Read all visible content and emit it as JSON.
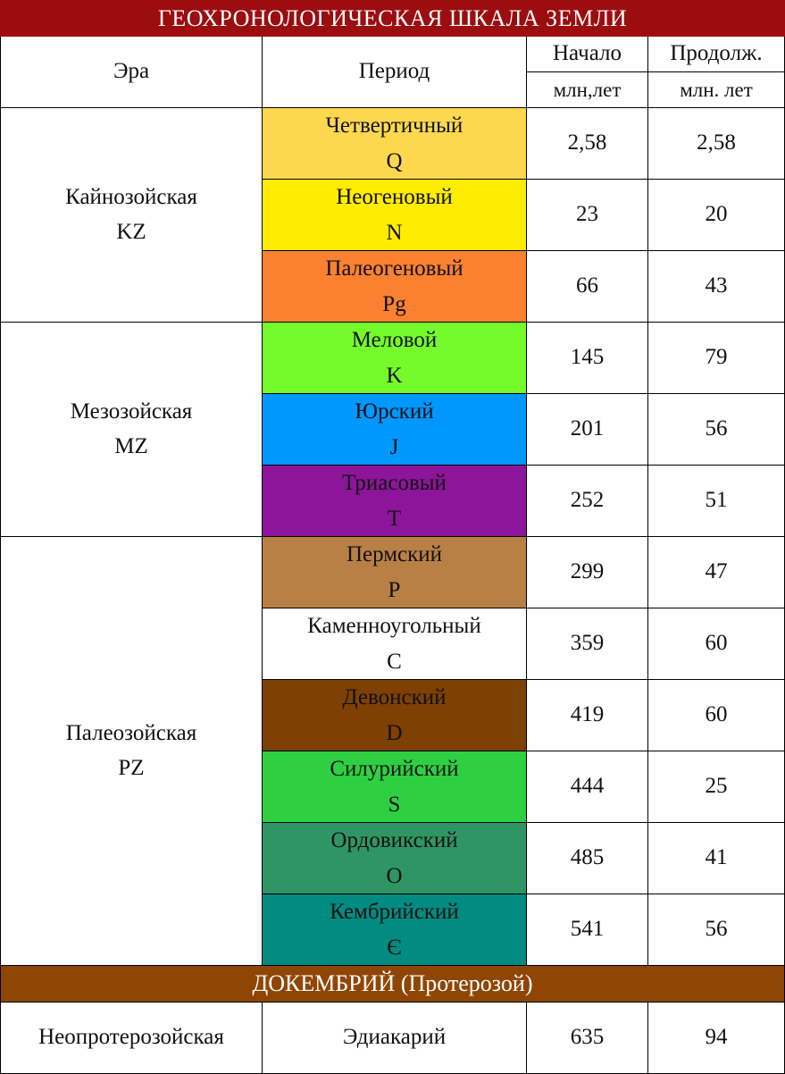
{
  "title": "ГЕОХРОНОЛОГИЧЕСКАЯ ШКАЛА ЗЕМЛИ",
  "header": {
    "era": "Эра",
    "period": "Период",
    "start": "Начало",
    "start_unit": "млн,лет",
    "duration": "Продолж.",
    "duration_unit": "млн. лет"
  },
  "eras": [
    {
      "name": "Кайнозойская",
      "code": "KZ"
    },
    {
      "name": "Мезозойская",
      "code": "MZ"
    },
    {
      "name": "Палеозойская",
      "code": "PZ"
    }
  ],
  "periods": [
    {
      "name": "Четвертичный",
      "code": "Q",
      "start": "2,58",
      "duration": "2,58",
      "color": "#fdd84f"
    },
    {
      "name": "Неогеновый",
      "code": "N",
      "start": "23",
      "duration": "20",
      "color": "#ffed00"
    },
    {
      "name": "Палеогеновый",
      "code": "Pg",
      "start": "66",
      "duration": "43",
      "color": "#fb8130"
    },
    {
      "name": "Меловой",
      "code": "K",
      "start": "145",
      "duration": "79",
      "color": "#75fb2c"
    },
    {
      "name": "Юрский",
      "code": "J",
      "start": "201",
      "duration": "56",
      "color": "#0097fe"
    },
    {
      "name": "Триасовый",
      "code": "T",
      "start": "252",
      "duration": "51",
      "color": "#8d1599"
    },
    {
      "name": "Пермский",
      "code": "P",
      "start": "299",
      "duration": "47",
      "color": "#b98045"
    },
    {
      "name": "Каменноугольный",
      "code": "C",
      "start": "359",
      "duration": "60",
      "color": "#ffffff"
    },
    {
      "name": "Девонский",
      "code": "D",
      "start": "419",
      "duration": "60",
      "color": "#7f4005"
    },
    {
      "name": "Силурийский",
      "code": "S",
      "start": "444",
      "duration": "25",
      "color": "#2ed041"
    },
    {
      "name": "Ордовикский",
      "code": "O",
      "start": "485",
      "duration": "41",
      "color": "#2f9565"
    },
    {
      "name": "Кембрийский",
      "code": "Є",
      "start": "541",
      "duration": "56",
      "color": "#038a81"
    }
  ],
  "precambrian": {
    "label": "ДОКЕМБРИЙ (Протерозой)",
    "color": "#8f4605",
    "row": {
      "era": "Неопротерозойская",
      "period": "Эдиакарий",
      "start": "635",
      "duration": "94"
    }
  },
  "colors": {
    "title_bar": "#9c0d10"
  }
}
